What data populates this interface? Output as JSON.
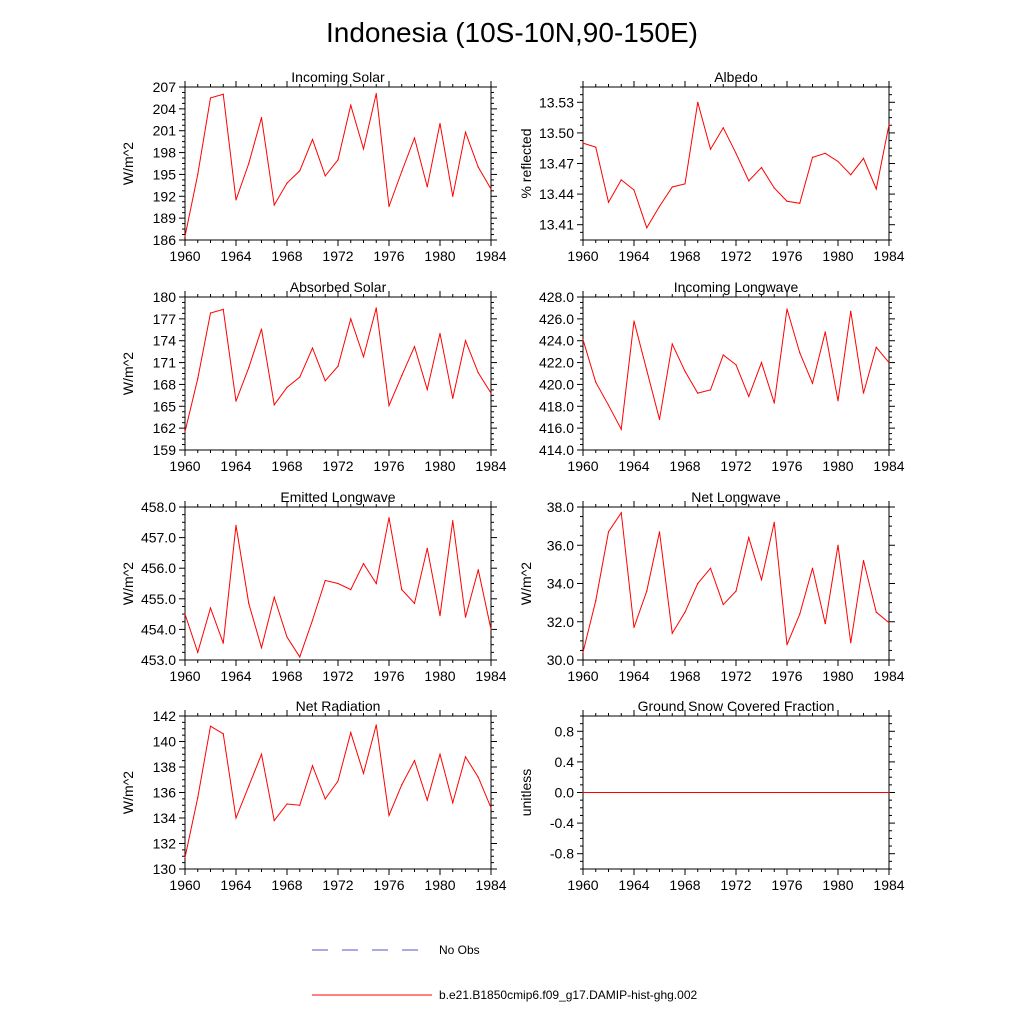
{
  "figure": {
    "title": "Indonesia (10S-10N,90-150E)",
    "legend": [
      {
        "label": "No Obs",
        "color": "#5555cc",
        "style": "dashed"
      },
      {
        "label": "b.e21.B1850cmip6.f09_g17.DAMIP-hist-ghg.002",
        "color": "#ff0000",
        "style": "solid"
      }
    ]
  },
  "chart_data": [
    {
      "type": "line",
      "title": "Incoming Solar",
      "xlabel": "",
      "ylabel": "W/m^2",
      "xlim": [
        1960,
        1984
      ],
      "ylim": [
        186,
        207
      ],
      "xticks": [
        1960,
        1964,
        1968,
        1972,
        1976,
        1980,
        1984
      ],
      "yticks": [
        "186",
        "189",
        "192",
        "195",
        "198",
        "201",
        "204",
        "207"
      ],
      "x": [
        1960,
        1961,
        1962,
        1963,
        1964,
        1965,
        1966,
        1967,
        1968,
        1969,
        1970,
        1971,
        1972,
        1973,
        1974,
        1975,
        1976,
        1977,
        1978,
        1979,
        1980,
        1981,
        1982,
        1983,
        1984
      ],
      "series": [
        {
          "color": "#ff0000",
          "values": [
            186.5,
            195.0,
            205.5,
            206.0,
            191.5,
            196.5,
            202.8,
            190.8,
            193.8,
            195.5,
            199.8,
            194.8,
            197.0,
            204.5,
            198.5,
            206.1,
            190.6,
            195.4,
            200.0,
            193.3,
            202.0,
            192.0,
            200.8,
            196.0,
            193.0
          ]
        }
      ]
    },
    {
      "type": "line",
      "title": "Albedo",
      "xlabel": "",
      "ylabel": "% reflected",
      "xlim": [
        1960,
        1984
      ],
      "ylim": [
        13.395,
        13.545
      ],
      "xticks": [
        1960,
        1964,
        1968,
        1972,
        1976,
        1980,
        1984
      ],
      "yticks": [
        "13.41",
        "13.44",
        "13.47",
        "13.50",
        "13.53"
      ],
      "x": [
        1960,
        1961,
        1962,
        1963,
        1964,
        1965,
        1966,
        1967,
        1968,
        1969,
        1970,
        1971,
        1972,
        1973,
        1974,
        1975,
        1976,
        1977,
        1978,
        1979,
        1980,
        1981,
        1982,
        1983,
        1984
      ],
      "series": [
        {
          "color": "#ff0000",
          "values": [
            13.49,
            13.486,
            13.432,
            13.454,
            13.444,
            13.407,
            13.428,
            13.447,
            13.45,
            13.53,
            13.484,
            13.505,
            13.48,
            13.453,
            13.466,
            13.446,
            13.433,
            13.431,
            13.476,
            13.48,
            13.472,
            13.459,
            13.475,
            13.445,
            13.508
          ]
        }
      ]
    },
    {
      "type": "line",
      "title": "Absorbed Solar",
      "xlabel": "",
      "ylabel": "W/m^2",
      "xlim": [
        1960,
        1984
      ],
      "ylim": [
        159,
        180
      ],
      "xticks": [
        1960,
        1964,
        1968,
        1972,
        1976,
        1980,
        1984
      ],
      "yticks": [
        "159",
        "162",
        "165",
        "168",
        "171",
        "174",
        "177",
        "180"
      ],
      "x": [
        1960,
        1961,
        1962,
        1963,
        1964,
        1965,
        1966,
        1967,
        1968,
        1969,
        1970,
        1971,
        1972,
        1973,
        1974,
        1975,
        1976,
        1977,
        1978,
        1979,
        1980,
        1981,
        1982,
        1983,
        1984
      ],
      "series": [
        {
          "color": "#ff0000",
          "values": [
            161.5,
            168.8,
            177.8,
            178.3,
            165.7,
            170.3,
            175.6,
            165.2,
            167.6,
            169.0,
            173.0,
            168.5,
            170.5,
            177.0,
            171.8,
            178.5,
            165.1,
            169.2,
            173.2,
            167.3,
            175.0,
            166.1,
            174.0,
            169.6,
            166.8
          ]
        }
      ]
    },
    {
      "type": "line",
      "title": "Incoming Longwave",
      "xlabel": "",
      "ylabel": "",
      "xlim": [
        1960,
        1984
      ],
      "ylim": [
        414.0,
        428.0
      ],
      "xticks": [
        1960,
        1964,
        1968,
        1972,
        1976,
        1980,
        1984
      ],
      "yticks": [
        "414.0",
        "416.0",
        "418.0",
        "420.0",
        "422.0",
        "424.0",
        "426.0",
        "428.0"
      ],
      "x": [
        1960,
        1961,
        1962,
        1963,
        1964,
        1965,
        1966,
        1967,
        1968,
        1969,
        1970,
        1971,
        1972,
        1973,
        1974,
        1975,
        1976,
        1977,
        1978,
        1979,
        1980,
        1981,
        1982,
        1983,
        1984
      ],
      "series": [
        {
          "color": "#ff0000",
          "values": [
            424.1,
            420.2,
            418.1,
            415.9,
            425.8,
            421.3,
            416.8,
            423.7,
            421.2,
            419.2,
            419.5,
            422.7,
            421.8,
            418.9,
            422.0,
            418.3,
            426.9,
            422.9,
            420.1,
            424.8,
            418.5,
            426.7,
            419.2,
            423.4,
            422.0
          ]
        }
      ]
    },
    {
      "type": "line",
      "title": "Emitted Longwave",
      "xlabel": "",
      "ylabel": "W/m^2",
      "xlim": [
        1960,
        1984
      ],
      "ylim": [
        453.0,
        458.0
      ],
      "xticks": [
        1960,
        1964,
        1968,
        1972,
        1976,
        1980,
        1984
      ],
      "yticks": [
        "453.0",
        "454.0",
        "455.0",
        "456.0",
        "457.0",
        "458.0"
      ],
      "x": [
        1960,
        1961,
        1962,
        1963,
        1964,
        1965,
        1966,
        1967,
        1968,
        1969,
        1970,
        1971,
        1972,
        1973,
        1974,
        1975,
        1976,
        1977,
        1978,
        1979,
        1980,
        1981,
        1982,
        1983,
        1984
      ],
      "series": [
        {
          "color": "#ff0000",
          "values": [
            454.5,
            453.25,
            454.7,
            453.55,
            457.4,
            454.85,
            453.4,
            455.05,
            453.75,
            453.1,
            454.3,
            455.6,
            455.5,
            455.3,
            456.15,
            455.5,
            457.65,
            455.3,
            454.85,
            456.65,
            454.45,
            457.55,
            454.4,
            455.95,
            454.0
          ]
        }
      ]
    },
    {
      "type": "line",
      "title": "Net Longwave",
      "xlabel": "",
      "ylabel": "W/m^2",
      "xlim": [
        1960,
        1984
      ],
      "ylim": [
        30.0,
        38.0
      ],
      "xticks": [
        1960,
        1964,
        1968,
        1972,
        1976,
        1980,
        1984
      ],
      "yticks": [
        "30.0",
        "32.0",
        "34.0",
        "36.0",
        "38.0"
      ],
      "x": [
        1960,
        1961,
        1962,
        1963,
        1964,
        1965,
        1966,
        1967,
        1968,
        1969,
        1970,
        1971,
        1972,
        1973,
        1974,
        1975,
        1976,
        1977,
        1978,
        1979,
        1980,
        1981,
        1982,
        1983,
        1984
      ],
      "series": [
        {
          "color": "#ff0000",
          "values": [
            30.4,
            33.1,
            36.7,
            37.7,
            31.7,
            33.6,
            36.7,
            31.4,
            32.5,
            34.0,
            34.8,
            32.9,
            33.6,
            36.4,
            34.2,
            37.2,
            30.8,
            32.4,
            34.8,
            31.9,
            36.0,
            30.9,
            35.2,
            32.5,
            31.95
          ]
        }
      ]
    },
    {
      "type": "line",
      "title": "Net Radiation",
      "xlabel": "",
      "ylabel": "W/m^2",
      "xlim": [
        1960,
        1984
      ],
      "ylim": [
        130,
        142
      ],
      "xticks": [
        1960,
        1964,
        1968,
        1972,
        1976,
        1980,
        1984
      ],
      "yticks": [
        "130",
        "132",
        "134",
        "136",
        "138",
        "140",
        "142"
      ],
      "x": [
        1960,
        1961,
        1962,
        1963,
        1964,
        1965,
        1966,
        1967,
        1968,
        1969,
        1970,
        1971,
        1972,
        1973,
        1974,
        1975,
        1976,
        1977,
        1978,
        1979,
        1980,
        1981,
        1982,
        1983,
        1984
      ],
      "series": [
        {
          "color": "#ff0000",
          "values": [
            130.9,
            135.6,
            141.2,
            140.6,
            134.0,
            136.5,
            139.0,
            133.8,
            135.1,
            135.0,
            138.1,
            135.5,
            136.9,
            140.7,
            137.5,
            141.3,
            134.2,
            136.6,
            138.5,
            135.4,
            139.0,
            135.2,
            138.8,
            137.2,
            134.8
          ]
        }
      ]
    },
    {
      "type": "line",
      "title": "Ground Snow Covered Fraction",
      "xlabel": "",
      "ylabel": "unitless",
      "xlim": [
        1960,
        1984
      ],
      "ylim": [
        -1.0,
        1.0
      ],
      "xticks": [
        1960,
        1964,
        1968,
        1972,
        1976,
        1980,
        1984
      ],
      "yticks": [
        "-0.8",
        "-0.4",
        "0.0",
        "0.4",
        "0.8"
      ],
      "x": [
        1960,
        1961,
        1962,
        1963,
        1964,
        1965,
        1966,
        1967,
        1968,
        1969,
        1970,
        1971,
        1972,
        1973,
        1974,
        1975,
        1976,
        1977,
        1978,
        1979,
        1980,
        1981,
        1982,
        1983,
        1984
      ],
      "series": [
        {
          "color": "#ff0000",
          "values": [
            0,
            0,
            0,
            0,
            0,
            0,
            0,
            0,
            0,
            0,
            0,
            0,
            0,
            0,
            0,
            0,
            0,
            0,
            0,
            0,
            0,
            0,
            0,
            0,
            0
          ]
        }
      ]
    }
  ]
}
